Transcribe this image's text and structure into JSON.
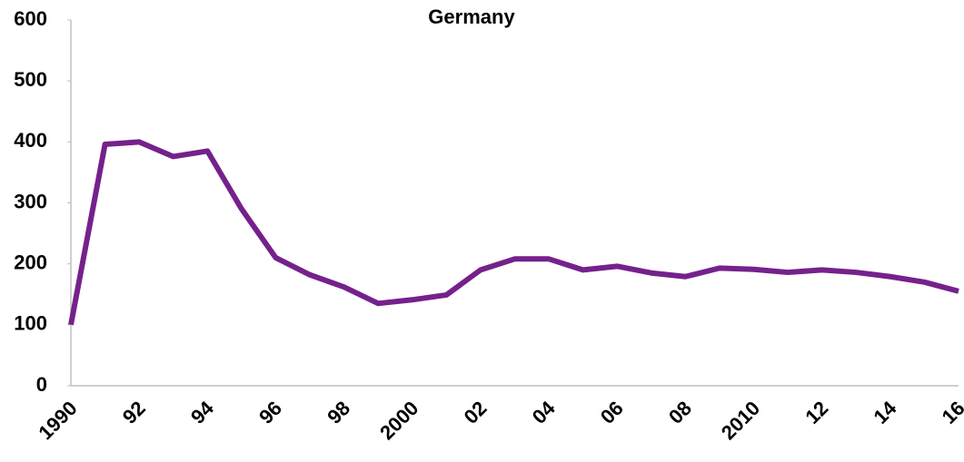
{
  "chart_data": {
    "type": "line",
    "title": "Germany",
    "categories": [
      "1990",
      null,
      "92",
      null,
      "94",
      null,
      "96",
      null,
      "98",
      null,
      "2000",
      null,
      "02",
      null,
      "04",
      null,
      "06",
      null,
      "08",
      null,
      "2010",
      null,
      "12",
      null,
      "14",
      null,
      "16"
    ],
    "series": [
      {
        "name": "Germany",
        "color": "#75218c",
        "values": [
          100,
          396,
          400,
          376,
          385,
          290,
          210,
          182,
          162,
          135,
          141,
          149,
          190,
          208,
          208,
          190,
          196,
          185,
          179,
          193,
          191,
          186,
          190,
          186,
          179,
          170,
          155
        ]
      }
    ],
    "ylim": [
      0,
      600
    ],
    "yticks": [
      0,
      100,
      200,
      300,
      400,
      500,
      600
    ],
    "grid": false
  }
}
